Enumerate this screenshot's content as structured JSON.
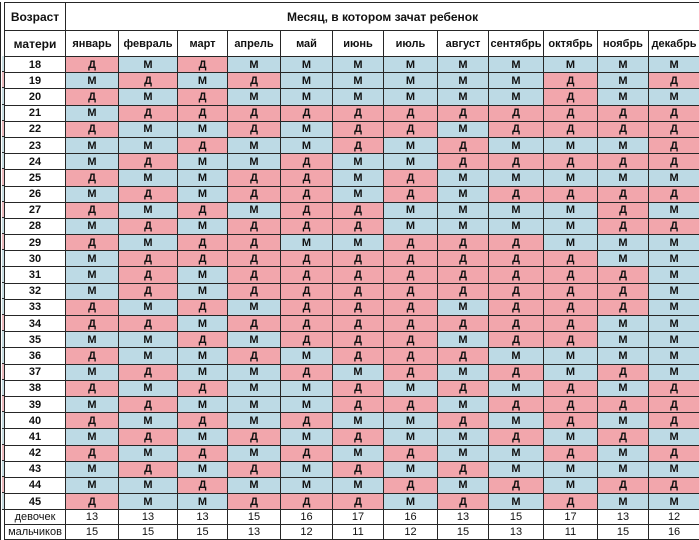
{
  "chart_data": {
    "type": "table",
    "title": "Месяц, в котором зачат ребенок",
    "row_header": {
      "line1": "Возраст",
      "line2": "матери"
    },
    "columns": [
      "январь",
      "февраль",
      "март",
      "апрель",
      "май",
      "июнь",
      "июль",
      "август",
      "сентябрь",
      "октябрь",
      "ноябрь",
      "декабрь"
    ],
    "cell_symbols": {
      "girl": "Д",
      "boy": "М"
    },
    "colors": {
      "girl_bg": "#F2A6AC",
      "boy_bg": "#BDDAE5",
      "girl_text": "#7E424A",
      "boy_text": "#4E7389",
      "girl_bg_muted": "#ECBCC0",
      "boy_bg_muted": "#C9DDE2"
    },
    "rows": [
      {
        "age": "18",
        "cells": [
          "Д",
          "М",
          "Д",
          "М",
          "М",
          "М",
          "М",
          "М",
          "М",
          "М",
          "М",
          "М"
        ]
      },
      {
        "age": "19",
        "cells": [
          "М",
          "Д",
          "М",
          "Д",
          "М",
          "М",
          "М",
          "М",
          "М",
          "Д",
          "М",
          "Д"
        ]
      },
      {
        "age": "20",
        "cells": [
          "Д",
          "М",
          "Д",
          "М",
          "М",
          "М",
          "М",
          "М",
          "М",
          "Д",
          "М",
          "М"
        ]
      },
      {
        "age": "21",
        "cells": [
          "М",
          "Д",
          "Д",
          "Д",
          "Д",
          "Д",
          "Д",
          "Д",
          "Д",
          "Д",
          "Д",
          "Д"
        ]
      },
      {
        "age": "22",
        "cells": [
          "Д",
          "М",
          "М",
          "Д",
          "М",
          "Д",
          "Д",
          "М",
          "Д",
          "Д",
          "Д",
          "Д"
        ]
      },
      {
        "age": "23",
        "cells": [
          "М",
          "М",
          "Д",
          "М",
          "М",
          "Д",
          "М",
          "Д",
          "М",
          "М",
          "М",
          "Д"
        ]
      },
      {
        "age": "24",
        "cells": [
          "М",
          "Д",
          "М",
          "М",
          "Д",
          "М",
          "М",
          "Д",
          "Д",
          "Д",
          "Д",
          "Д"
        ]
      },
      {
        "age": "25",
        "cells": [
          "Д",
          "М",
          "М",
          "Д",
          "Д",
          "М",
          "Д",
          "М",
          "М",
          "М",
          "М",
          "М"
        ]
      },
      {
        "age": "26",
        "cells": [
          "М",
          "Д",
          "М",
          "Д",
          "Д",
          "М",
          "Д",
          "М",
          "Д",
          "Д",
          "Д",
          "Д"
        ]
      },
      {
        "age": "27",
        "cells": [
          "Д",
          "М",
          "Д",
          "М",
          "Д",
          "Д",
          "М",
          "М",
          "М",
          "М",
          "Д",
          "М"
        ]
      },
      {
        "age": "28",
        "cells": [
          "М",
          "Д",
          "М",
          "Д",
          "Д",
          "Д",
          "М",
          "М",
          "М",
          "М",
          "Д",
          "Д"
        ]
      },
      {
        "age": "29",
        "cells": [
          "Д",
          "М",
          "Д",
          "Д",
          "М",
          "М",
          "Д",
          "Д",
          "Д",
          "М",
          "М",
          "М"
        ]
      },
      {
        "age": "30",
        "cells": [
          "М",
          "Д",
          "Д",
          "Д",
          "Д",
          "Д",
          "Д",
          "Д",
          "Д",
          "Д",
          "М",
          "М"
        ]
      },
      {
        "age": "31",
        "cells": [
          "М",
          "Д",
          "М",
          "Д",
          "Д",
          "Д",
          "Д",
          "Д",
          "Д",
          "Д",
          "Д",
          "М"
        ]
      },
      {
        "age": "32",
        "cells": [
          "М",
          "Д",
          "М",
          "Д",
          "Д",
          "Д",
          "Д",
          "Д",
          "Д",
          "Д",
          "Д",
          "М"
        ]
      },
      {
        "age": "33",
        "cells": [
          "Д",
          "М",
          "Д",
          "М",
          "Д",
          "Д",
          "Д",
          "М",
          "Д",
          "Д",
          "Д",
          "М"
        ]
      },
      {
        "age": "34",
        "cells": [
          "Д",
          "Д",
          "М",
          "Д",
          "Д",
          "Д",
          "Д",
          "Д",
          "Д",
          "Д",
          "М",
          "М"
        ]
      },
      {
        "age": "35",
        "cells": [
          "М",
          "М",
          "Д",
          "М",
          "Д",
          "Д",
          "Д",
          "М",
          "Д",
          "Д",
          "М",
          "М"
        ]
      },
      {
        "age": "36",
        "cells": [
          "Д",
          "М",
          "М",
          "Д",
          "М",
          "Д",
          "Д",
          "Д",
          "М",
          "М",
          "М",
          "М"
        ]
      },
      {
        "age": "37",
        "cells": [
          "М",
          "Д",
          "М",
          "М",
          "Д",
          "М",
          "Д",
          "М",
          "Д",
          "М",
          "Д",
          "М"
        ]
      },
      {
        "age": "38",
        "cells": [
          "Д",
          "М",
          "Д",
          "М",
          "М",
          "Д",
          "М",
          "Д",
          "М",
          "Д",
          "М",
          "Д"
        ]
      },
      {
        "age": "39",
        "cells": [
          "М",
          "Д",
          "М",
          "М",
          "М",
          "Д",
          "Д",
          "М",
          "Д",
          "Д",
          "Д",
          "Д"
        ]
      },
      {
        "age": "40",
        "cells": [
          "Д",
          "М",
          "Д",
          "М",
          "Д",
          "М",
          "М",
          "Д",
          "М",
          "Д",
          "М",
          "Д"
        ]
      },
      {
        "age": "41",
        "cells": [
          "М",
          "Д",
          "М",
          "Д",
          "М",
          "Д",
          "М",
          "М",
          "Д",
          "М",
          "Д",
          "М"
        ]
      },
      {
        "age": "42",
        "cells": [
          "Д",
          "М",
          "Д",
          "М",
          "Д",
          "М",
          "Д",
          "М",
          "М",
          "Д",
          "М",
          "Д"
        ]
      },
      {
        "age": "43",
        "cells": [
          "М",
          "Д",
          "М",
          "Д",
          "М",
          "Д",
          "М",
          "Д",
          "М",
          "М",
          "М",
          "М"
        ]
      },
      {
        "age": "44",
        "cells": [
          "М",
          "М",
          "Д",
          "М",
          "М",
          "М",
          "Д",
          "М",
          "Д",
          "М",
          "Д",
          "Д"
        ]
      },
      {
        "age": "45",
        "cells": [
          "Д",
          "М",
          "М",
          "Д",
          "Д",
          "Д",
          "М",
          "Д",
          "М",
          "Д",
          "М",
          "М"
        ]
      }
    ],
    "summary": [
      {
        "label": "девочек",
        "values": [
          "13",
          "13",
          "13",
          "15",
          "16",
          "17",
          "16",
          "13",
          "15",
          "17",
          "13",
          "12"
        ]
      },
      {
        "label": "мальчиков",
        "values": [
          "15",
          "15",
          "15",
          "13",
          "12",
          "11",
          "12",
          "15",
          "13",
          "11",
          "15",
          "16"
        ]
      }
    ]
  }
}
